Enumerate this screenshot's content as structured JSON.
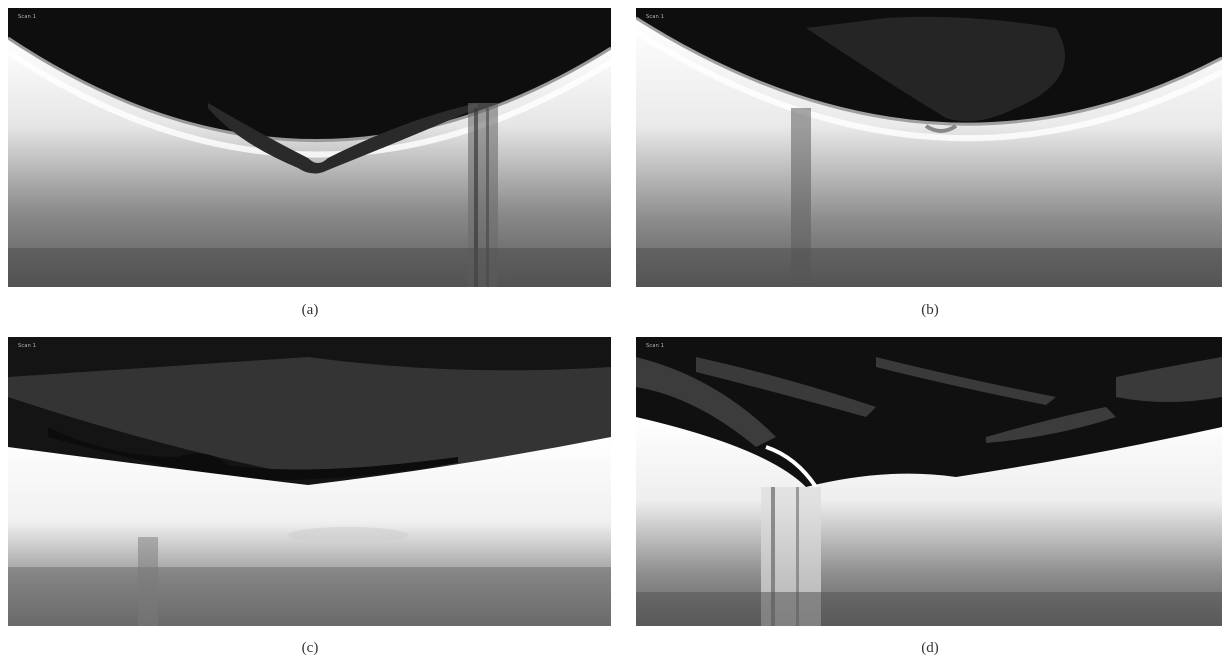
{
  "figure": {
    "panels": [
      {
        "id": "a",
        "caption": "(a)",
        "scan_label": "Scan 1"
      },
      {
        "id": "b",
        "caption": "(b)",
        "scan_label": "Scan 1"
      },
      {
        "id": "c",
        "caption": "(c)",
        "scan_label": "Scan 1"
      },
      {
        "id": "d",
        "caption": "(d)",
        "scan_label": "Scan 1"
      }
    ]
  },
  "colors": {
    "background": "#ffffff",
    "vitreous": "#0d0d0d",
    "retina_band": "#f2f2f2",
    "choroid": "#6e6e6e",
    "caption_text": "#333333"
  }
}
